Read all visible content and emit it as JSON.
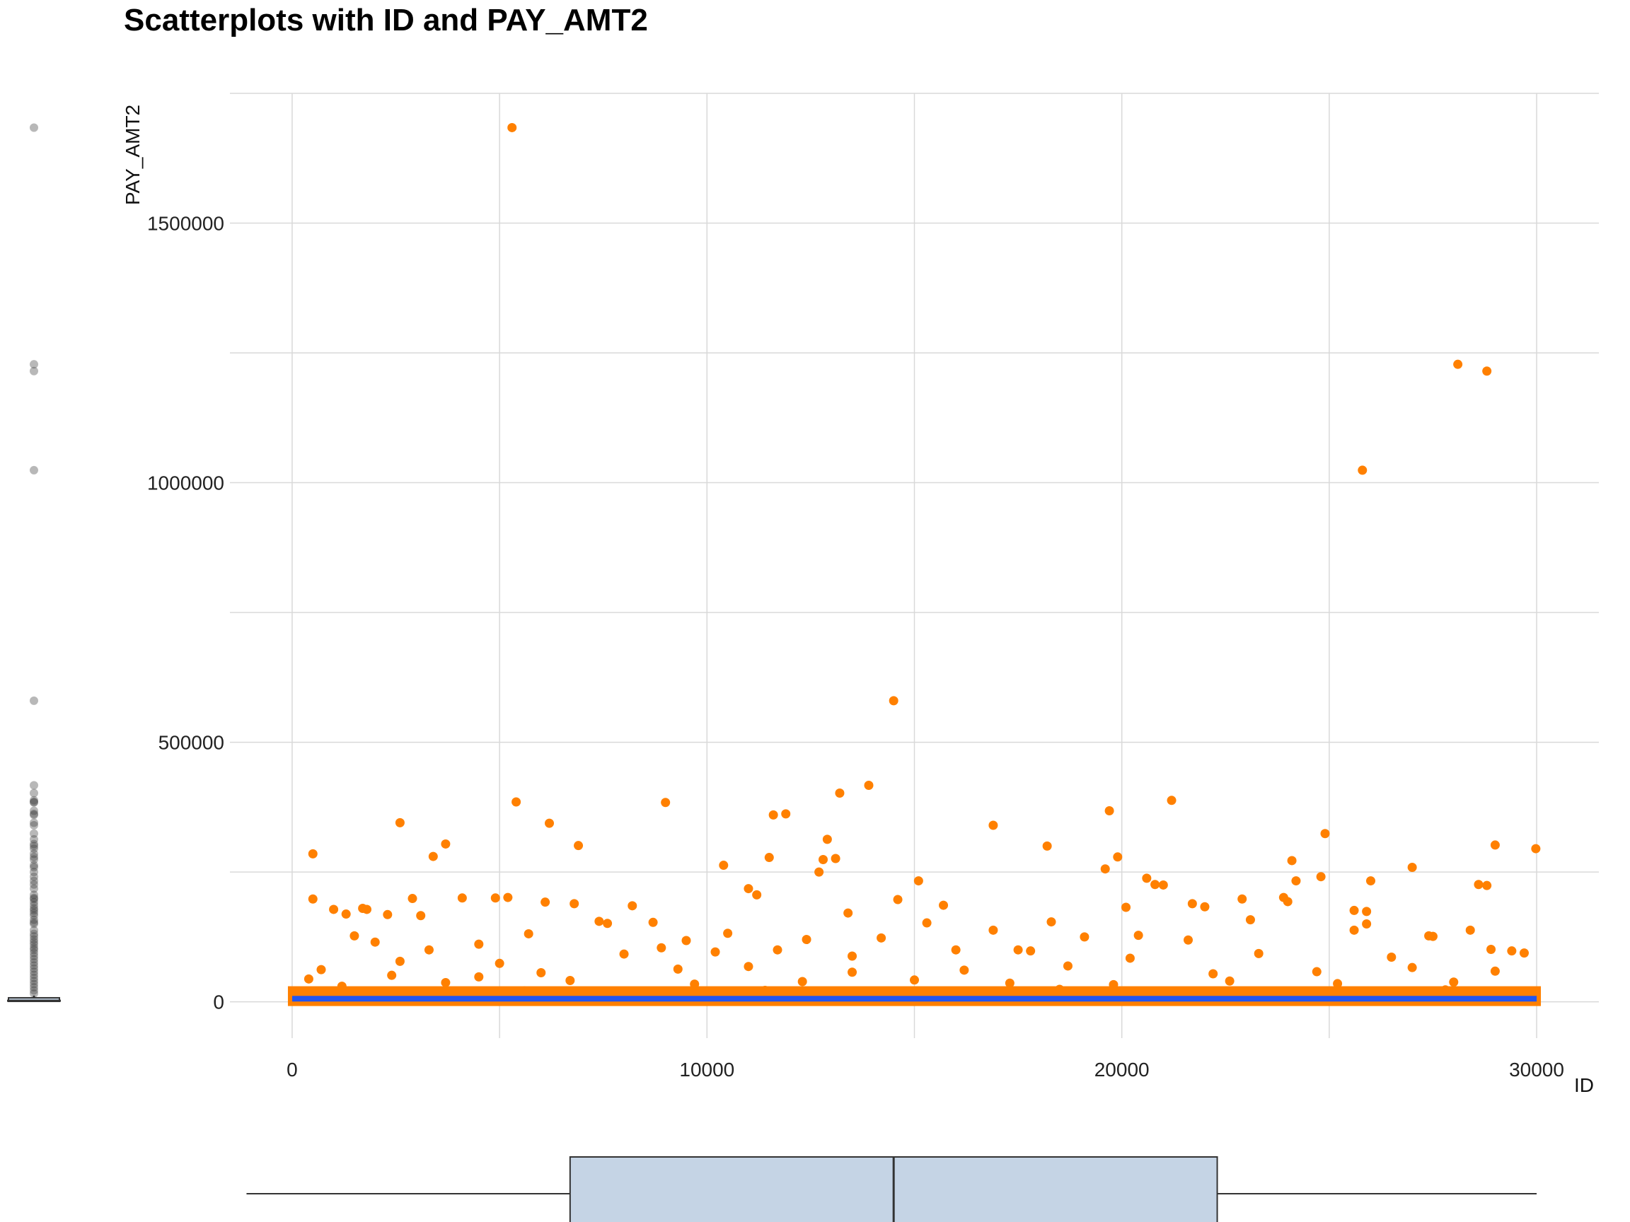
{
  "chart_data": {
    "type": "scatter",
    "title": "Scatterplots with ID and PAY_AMT2",
    "xlabel": "ID",
    "ylabel": "PAY_AMT2",
    "xlim": [
      -1500,
      31500
    ],
    "ylim": [
      -70000,
      1750000
    ],
    "x_ticks": [
      0,
      10000,
      20000,
      30000
    ],
    "y_ticks": [
      0,
      500000,
      1000000,
      1500000
    ],
    "x_tick_labels": [
      "0",
      "10000",
      "20000",
      "30000"
    ],
    "y_tick_labels": [
      "0",
      "500000",
      "1000000",
      "1500000"
    ],
    "grid": true,
    "point_color": "#FF8000",
    "trend_color": "#2255EE",
    "trend_line": {
      "x": [
        0,
        30000
      ],
      "y": [
        5900,
        5900
      ]
    },
    "points": {
      "x": [
        5300,
        28100,
        28800,
        25800,
        14500,
        13900,
        13200,
        21200,
        5400,
        9000,
        11600,
        11900,
        19700,
        2600,
        6200,
        16900,
        24900,
        6900,
        18200,
        3700,
        29000,
        29980,
        3400,
        500,
        12900,
        19900,
        10400,
        13100,
        24100,
        21000,
        27000,
        12800,
        11500,
        24800,
        15100,
        26000,
        28600,
        20600,
        28800,
        20800,
        11000,
        11200,
        24200,
        22000,
        21700,
        1000,
        1800,
        4900,
        5200,
        12700,
        14600,
        19600,
        22900,
        23900,
        25600,
        25900,
        2900,
        6100,
        8200,
        15700,
        500,
        1300,
        1700,
        2300,
        3100,
        4100,
        6800,
        7400,
        7600,
        8700,
        13400,
        16000,
        17500,
        18300,
        20100,
        23100,
        25900,
        27500,
        28400,
        29400,
        1500,
        2000,
        3300,
        4500,
        5700,
        8900,
        9500,
        10500,
        11700,
        12400,
        14200,
        15300,
        16900,
        19100,
        20400,
        21600,
        24000,
        25600,
        27400,
        28900,
        700,
        2600,
        5000,
        8000,
        10200,
        13500,
        17800,
        20200,
        23300,
        26500,
        29700,
        400,
        2400,
        4500,
        6000,
        9300,
        11000,
        13500,
        16200,
        18700,
        22200,
        24700,
        27000,
        29000,
        1200,
        3700,
        6700,
        9700,
        12300,
        15000,
        17300,
        19800,
        22600,
        25200,
        28000,
        100,
        1900,
        3500,
        5600,
        7200,
        9100,
        11400,
        13100,
        14900,
        16600,
        18500,
        20900,
        22400,
        24300,
        26200,
        27800,
        29300,
        800,
        2200,
        4000,
        5900,
        7800,
        10000,
        12100,
        14100,
        16300,
        18000,
        20000,
        22000,
        23800,
        25400,
        27200,
        29600
      ],
      "y": [
        1684000,
        1228000,
        1215000,
        1024000,
        580000,
        417000,
        402000,
        388000,
        385000,
        384000,
        360000,
        362000,
        368000,
        345000,
        344000,
        340000,
        324000,
        301000,
        300000,
        304000,
        302000,
        295000,
        280000,
        285000,
        313000,
        279000,
        263000,
        276000,
        272000,
        225000,
        259000,
        274000,
        278000,
        241000,
        233000,
        233000,
        226000,
        238000,
        224000,
        226000,
        218000,
        206000,
        233000,
        183000,
        189000,
        178000,
        178000,
        200000,
        201000,
        250000,
        197000,
        256000,
        198000,
        201000,
        176000,
        174000,
        199000,
        192000,
        185000,
        186000,
        198000,
        169000,
        180000,
        168000,
        166000,
        200000,
        189000,
        155000,
        151000,
        153000,
        171000,
        100000,
        100000,
        154000,
        182000,
        158000,
        150000,
        126000,
        138000,
        98000,
        127000,
        115000,
        100000,
        111000,
        131000,
        104000,
        118000,
        132000,
        100000,
        120000,
        123000,
        152000,
        138000,
        125000,
        128000,
        119000,
        193000,
        138000,
        127000,
        101000,
        62000,
        78000,
        74000,
        92000,
        96000,
        88000,
        98000,
        84000,
        93000,
        86000,
        94000,
        44000,
        51000,
        48000,
        56000,
        63000,
        68000,
        57000,
        61000,
        69000,
        54000,
        58000,
        66000,
        59000,
        30000,
        37000,
        41000,
        34000,
        39000,
        42000,
        36000,
        33000,
        40000,
        35000,
        38000,
        12000,
        18000,
        15000,
        21000,
        14000,
        17000,
        22000,
        16000,
        19000,
        13000,
        24000,
        11000,
        20000,
        15000,
        18000,
        23000,
        14000,
        3000,
        5000,
        2000,
        6000,
        4000,
        7000,
        3000,
        8000,
        5000,
        2000,
        6000,
        4000,
        7000,
        3000,
        5000,
        2000
      ]
    },
    "side_boxplot": {
      "axis": "y",
      "variable": "PAY_AMT2",
      "whisker_range": [
        0,
        12000
      ],
      "box": [
        800,
        2000,
        5000
      ],
      "outliers": [
        1684000,
        1228000,
        1215000,
        1024000,
        580000,
        417000,
        402000,
        388000,
        385000,
        384000,
        368000,
        362000,
        360000,
        345000,
        340000,
        324000,
        313000,
        304000,
        300000,
        295000,
        285000,
        279000,
        274000,
        263000,
        259000,
        250000,
        241000,
        233000,
        226000,
        218000,
        206000,
        200000,
        198000,
        192000,
        186000,
        180000,
        176000,
        171000,
        166000,
        158000,
        153000,
        150000,
        138000,
        131000,
        126000,
        120000,
        115000,
        110000,
        104000,
        100000,
        94000,
        88000,
        82000,
        76000,
        70000,
        64000,
        58000,
        52000,
        46000,
        40000,
        34000,
        28000,
        22000,
        16000
      ],
      "color": "#333333"
    },
    "bottom_boxplot": {
      "axis": "x",
      "variable": "ID",
      "whisker_range": [
        -1100,
        30000
      ],
      "box": [
        6700,
        14500,
        22300
      ],
      "fill": "#C5D4E5",
      "color": "#333333"
    }
  }
}
